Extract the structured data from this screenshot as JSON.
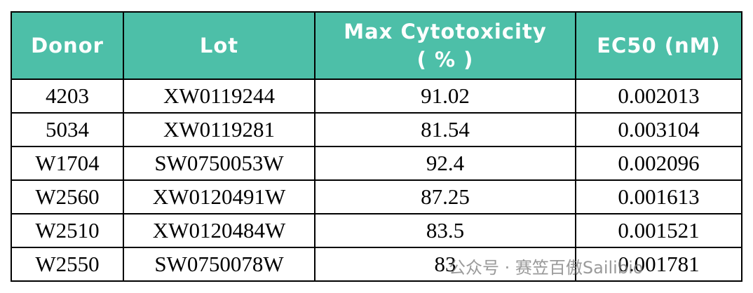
{
  "table": {
    "header": [
      "Donor",
      "Lot",
      "Max Cytotoxicity\n( % )",
      "EC50 (nM)"
    ],
    "rows": [
      [
        "4203",
        "XW0119244",
        "91.02",
        "0.002013"
      ],
      [
        "5034",
        "XW0119281",
        "81.54",
        "0.003104"
      ],
      [
        "W1704",
        "SW0750053W",
        "92.4",
        "0.002096"
      ],
      [
        "W2560",
        "XW0120491W",
        "87.25",
        "0.001613"
      ],
      [
        "W2510",
        "XW0120484W",
        "83.5",
        "0.001521"
      ],
      [
        "W2550",
        "SW0750078W",
        "83",
        "0.001781"
      ]
    ]
  },
  "watermark": "公众号 · 赛笠百傲Sailibio"
}
